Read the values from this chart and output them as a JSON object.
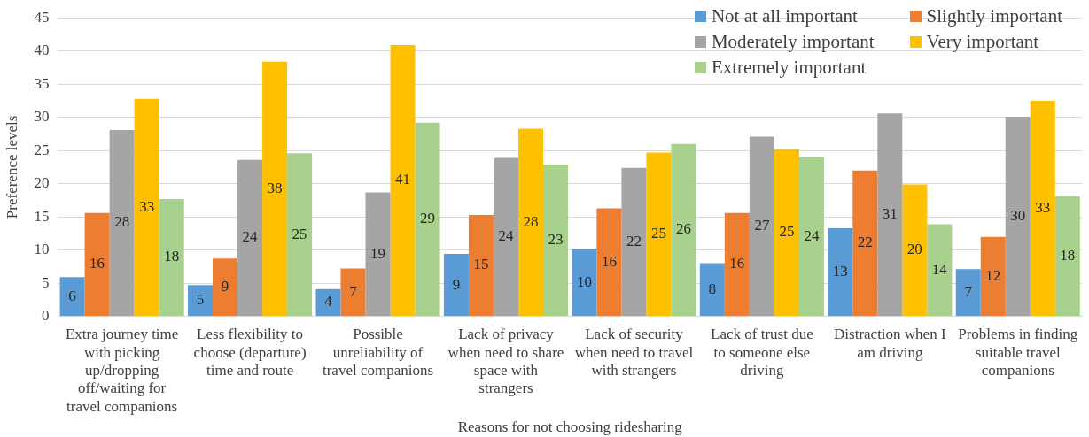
{
  "chart_data": {
    "type": "bar",
    "xlabel": "Reasons for not choosing ridesharing",
    "ylabel": "Preference levels",
    "categories": [
      "Extra journey time with picking up/dropping off/waiting for travel companions",
      "Less flexibility to choose (departure) time and route",
      "Possible unreliability of travel companions",
      "Lack of privacy when need to share space with strangers",
      "Lack of security when need to travel with strangers",
      "Lack of trust due to someone else driving",
      "Distraction when I am driving",
      "Problems in finding suitable travel companions"
    ],
    "series": [
      {
        "name": "Not at all important",
        "color": "#5b9bd5",
        "values": [
          5.9,
          4.7,
          4.1,
          9.4,
          10.2,
          8.0,
          13.3,
          7.1
        ],
        "value_labels": [
          "6",
          "5",
          "4",
          "9",
          "10",
          "8",
          "13",
          "7"
        ]
      },
      {
        "name": "Slightly important",
        "color": "#ed7d31",
        "values": [
          15.6,
          8.7,
          7.2,
          15.3,
          16.3,
          15.6,
          22.0,
          12.0
        ],
        "value_labels": [
          "16",
          "9",
          "7",
          "15",
          "16",
          "16",
          "22",
          "12"
        ]
      },
      {
        "name": "Moderately important",
        "color": "#a5a5a5",
        "values": [
          28.1,
          23.6,
          18.7,
          23.9,
          22.4,
          27.1,
          30.6,
          30.1
        ],
        "value_labels": [
          "28",
          "24",
          "19",
          "24",
          "22",
          "27",
          "31",
          "30"
        ]
      },
      {
        "name": "Very important",
        "color": "#ffc000",
        "values": [
          32.8,
          38.4,
          40.9,
          28.3,
          24.7,
          25.2,
          19.9,
          32.5
        ],
        "value_labels": [
          "33",
          "38",
          "41",
          "28",
          "25",
          "25",
          "20",
          "33"
        ]
      },
      {
        "name": "Extremely important",
        "color": "#a9d18e",
        "values": [
          17.7,
          24.6,
          29.2,
          22.9,
          26.0,
          24.0,
          13.9,
          18.1
        ],
        "value_labels": [
          "18",
          "25",
          "29",
          "23",
          "26",
          "24",
          "14",
          "18"
        ]
      }
    ],
    "ylim": [
      0,
      45
    ],
    "yticks": [
      0,
      5,
      10,
      15,
      20,
      25,
      30,
      35,
      40,
      45
    ],
    "grid": "y",
    "legend": "top right"
  }
}
